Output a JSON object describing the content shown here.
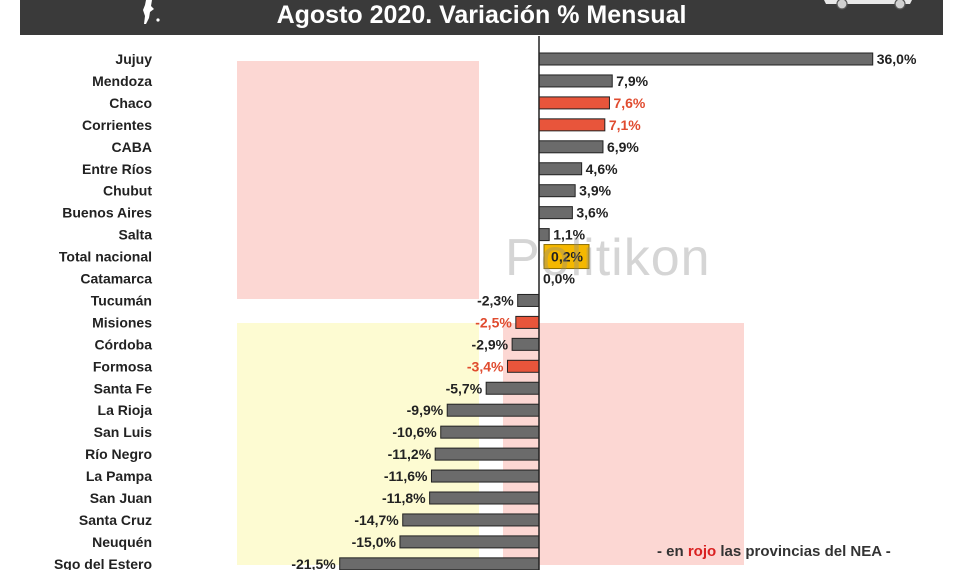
{
  "title": "Agosto 2020. Variación % Mensual",
  "watermark": "Politikon",
  "footnote": {
    "prefix": "- en ",
    "highlight": "rojo",
    "suffix": " las provincias del NEA -"
  },
  "colors": {
    "bar_default": "#6b6b6b",
    "bar_nea": "#e8553b",
    "bar_total": "#f5b800",
    "nea_text": "#e04b2f",
    "title_bg": "#3a3a3a",
    "band_pink": "#fcd7d3",
    "band_yellow": "#fdfbd2"
  },
  "chart_data": {
    "type": "bar",
    "orientation": "horizontal",
    "title": "Agosto 2020. Variación % Mensual",
    "xlim": [
      -22,
      36
    ],
    "grid": false,
    "legend": "none",
    "categories": [
      "Jujuy",
      "Mendoza",
      "Chaco",
      "Corrientes",
      "CABA",
      "Entre Ríos",
      "Chubut",
      "Buenos Aires",
      "Salta",
      "Total nacional",
      "Catamarca",
      "Tucumán",
      "Misiones",
      "Córdoba",
      "Formosa",
      "Santa Fe",
      "La Rioja",
      "San Luis",
      "Río Negro",
      "La Pampa",
      "San Juan",
      "Santa Cruz",
      "Neuquén",
      "Sgo del Estero"
    ],
    "values": [
      36.0,
      7.9,
      7.6,
      7.1,
      6.9,
      4.6,
      3.9,
      3.6,
      1.1,
      0.2,
      0.0,
      -2.3,
      -2.5,
      -2.9,
      -3.4,
      -5.7,
      -9.9,
      -10.6,
      -11.2,
      -11.6,
      -11.8,
      -14.7,
      -15.0,
      -21.5
    ],
    "labels": [
      "36,0%",
      "7,9%",
      "7,6%",
      "7,1%",
      "6,9%",
      "4,6%",
      "3,9%",
      "3,6%",
      "1,1%",
      "0,2%",
      "0,0%",
      "-2,3%",
      "-2,5%",
      "-2,9%",
      "-3,4%",
      "-5,7%",
      "-9,9%",
      "-10,6%",
      "-11,2%",
      "-11,6%",
      "-11,8%",
      "-14,7%",
      "-15,0%",
      "-21,5%"
    ],
    "highlight": [
      "normal",
      "normal",
      "nea",
      "nea",
      "normal",
      "normal",
      "normal",
      "normal",
      "normal",
      "total",
      "normal",
      "normal",
      "nea",
      "normal",
      "nea",
      "normal",
      "normal",
      "normal",
      "normal",
      "normal",
      "normal",
      "normal",
      "normal",
      "normal"
    ]
  }
}
